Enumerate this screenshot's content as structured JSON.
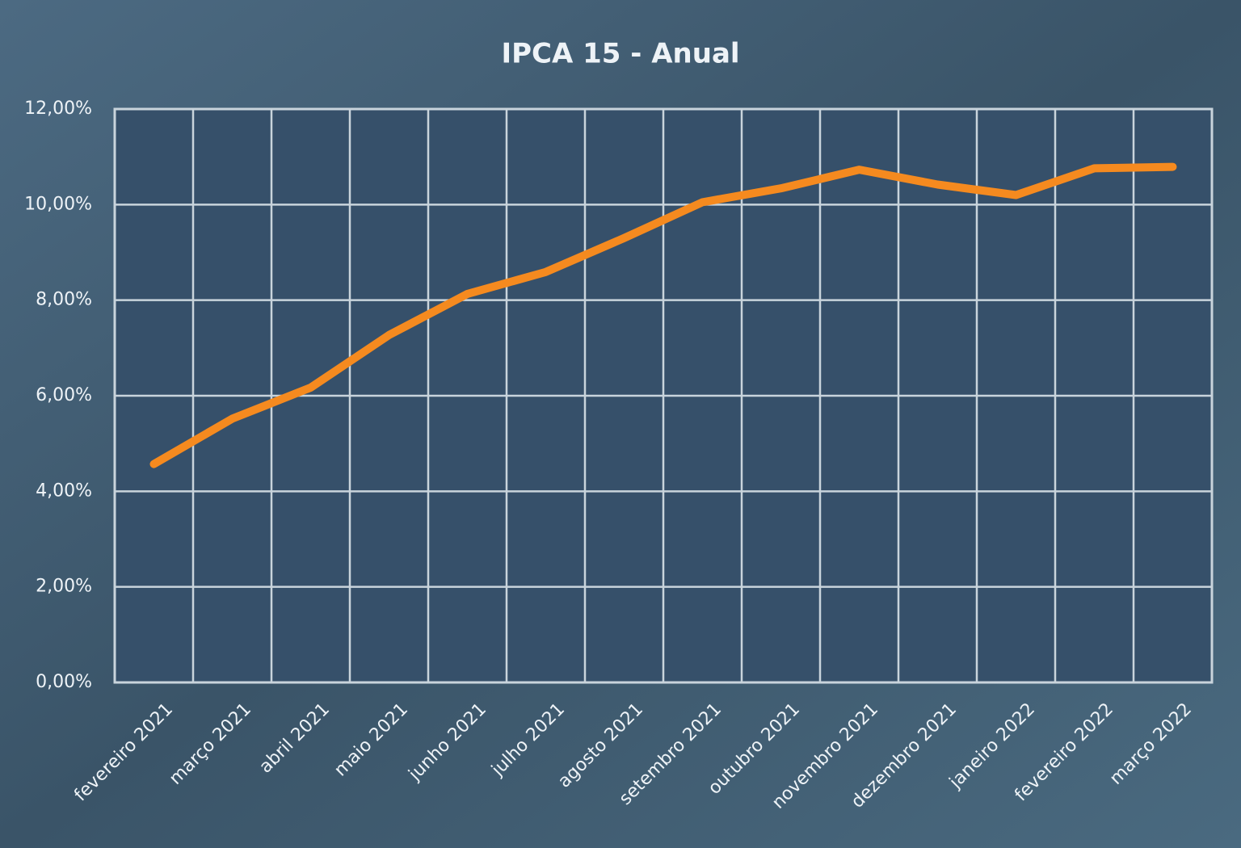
{
  "chart_data": {
    "type": "line",
    "title": "IPCA 15 - Anual",
    "categories": [
      "fevereiro 2021",
      "março 2021",
      "abril 2021",
      "maio 2021",
      "junho 2021",
      "julho 2021",
      "agosto 2021",
      "setembro 2021",
      "outubro 2021",
      "novembro 2021",
      "dezembro 2021",
      "janeiro 2022",
      "fevereiro 2022",
      "março 2022"
    ],
    "series": [
      {
        "name": "IPCA 15",
        "color": "#f58a1f",
        "values": [
          4.57,
          5.52,
          6.17,
          7.27,
          8.13,
          8.59,
          9.3,
          10.05,
          10.34,
          10.73,
          10.42,
          10.2,
          10.76,
          10.79
        ]
      }
    ],
    "ylim": [
      0,
      12
    ],
    "yticks": [
      {
        "value": 0,
        "label": "0,00%"
      },
      {
        "value": 2,
        "label": "2,00%"
      },
      {
        "value": 4,
        "label": "4,00%"
      },
      {
        "value": 6,
        "label": "6,00%"
      },
      {
        "value": 8,
        "label": "8,00%"
      },
      {
        "value": 10,
        "label": "10,00%"
      },
      {
        "value": 12,
        "label": "12,00%"
      }
    ],
    "grid": true
  }
}
